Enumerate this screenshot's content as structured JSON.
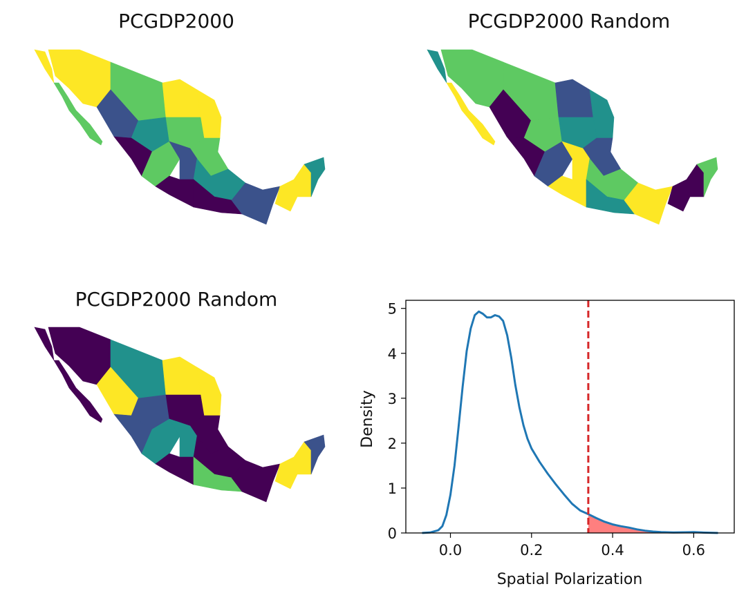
{
  "maps": [
    {
      "title": "PCGDP2000",
      "colormap": [
        "#440154",
        "#3b528b",
        "#21918c",
        "#5ec962",
        "#fde725"
      ]
    },
    {
      "title": "PCGDP2000 Random",
      "colormap": [
        "#440154",
        "#3b528b",
        "#21918c",
        "#5ec962",
        "#fde725"
      ]
    },
    {
      "title": "PCGDP2000 Random",
      "colormap": [
        "#440154",
        "#3b528b",
        "#21918c",
        "#5ec962",
        "#fde725"
      ]
    }
  ],
  "chart_data": {
    "type": "line",
    "title": "",
    "xlabel": "Spatial Polarization",
    "ylabel": "Density",
    "xlim": [
      -0.11,
      0.7
    ],
    "ylim": [
      0,
      5.18
    ],
    "xticks": [
      0.0,
      0.2,
      0.4,
      0.6
    ],
    "xtick_labels": [
      "0.0",
      "0.2",
      "0.4",
      "0.6"
    ],
    "yticks": [
      0,
      1,
      2,
      3,
      4,
      5
    ],
    "ytick_labels": [
      "0",
      "1",
      "2",
      "3",
      "4",
      "5"
    ],
    "grid": false,
    "series": [
      {
        "color": "#1f77b4",
        "x": [
          -0.07,
          -0.05,
          -0.03,
          -0.02,
          -0.01,
          0.0,
          0.01,
          0.02,
          0.03,
          0.04,
          0.05,
          0.06,
          0.07,
          0.08,
          0.09,
          0.1,
          0.11,
          0.12,
          0.13,
          0.14,
          0.15,
          0.16,
          0.17,
          0.18,
          0.19,
          0.2,
          0.22,
          0.24,
          0.26,
          0.28,
          0.3,
          0.32,
          0.34,
          0.36,
          0.38,
          0.4,
          0.42,
          0.44,
          0.46,
          0.48,
          0.5,
          0.52,
          0.55,
          0.58,
          0.6,
          0.62,
          0.66
        ],
        "y": [
          0.0,
          0.01,
          0.06,
          0.15,
          0.4,
          0.85,
          1.5,
          2.35,
          3.25,
          4.05,
          4.55,
          4.85,
          4.93,
          4.88,
          4.8,
          4.8,
          4.85,
          4.82,
          4.72,
          4.4,
          3.9,
          3.3,
          2.8,
          2.4,
          2.1,
          1.88,
          1.58,
          1.32,
          1.08,
          0.86,
          0.65,
          0.5,
          0.42,
          0.33,
          0.25,
          0.19,
          0.15,
          0.12,
          0.08,
          0.05,
          0.03,
          0.02,
          0.01,
          0.015,
          0.02,
          0.01,
          0.0
        ]
      }
    ],
    "reference_line": {
      "x": 0.34,
      "color": "#d62728",
      "style": "dashed"
    },
    "shaded_region": {
      "from": 0.34,
      "color": "#ff7f7f"
    }
  }
}
